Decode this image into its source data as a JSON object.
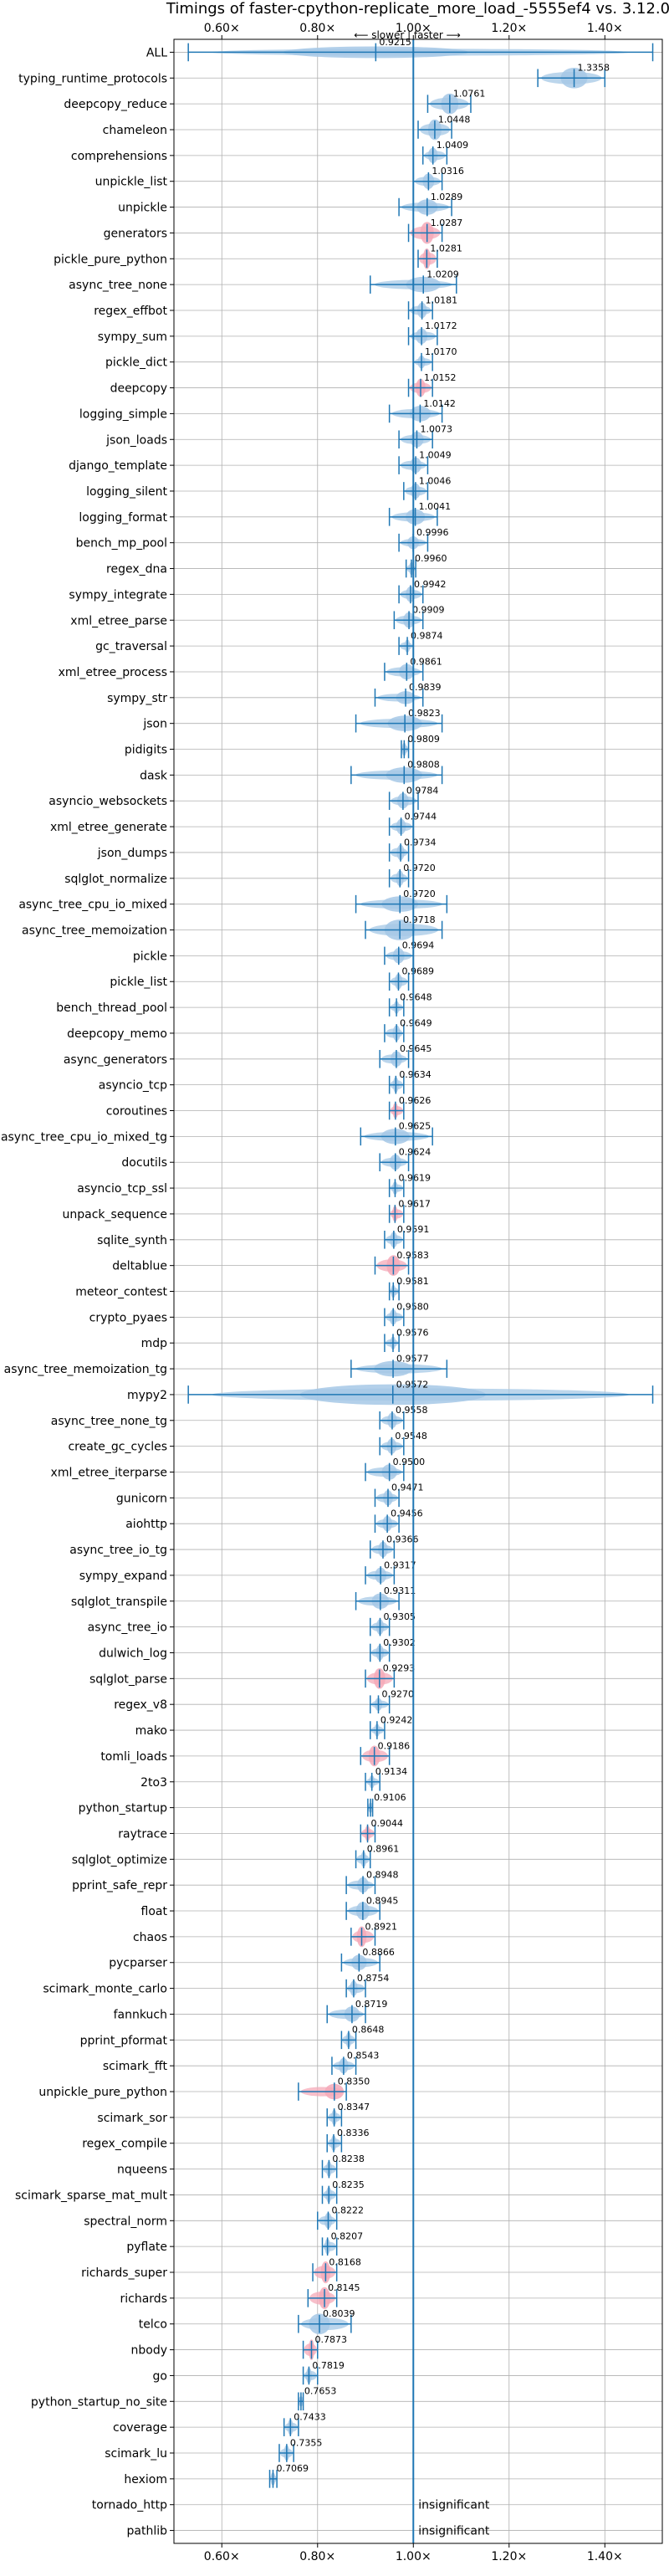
{
  "chart_data": {
    "type": "violin",
    "title": "Timings of faster-cpython-replicate_more_load_-5555ef4 vs. 3.12.0",
    "annotation": "⟵ slower | faster ⟶",
    "x_ticks": [
      {
        "value": 0.6,
        "label": "0.60×"
      },
      {
        "value": 0.8,
        "label": "0.80×"
      },
      {
        "value": 1.0,
        "label": "1.00×"
      },
      {
        "value": 1.2,
        "label": "1.20×"
      },
      {
        "value": 1.4,
        "label": "1.40×"
      }
    ],
    "xlim": [
      0.5,
      1.52
    ],
    "reference_line": 1.0,
    "grid": true,
    "colors": {
      "normal": "#a6c8e6",
      "significant": "#f4a9b8",
      "line": "#1f77b4"
    },
    "benchmarks": [
      {
        "name": "ALL",
        "value": 0.9215,
        "label": "0.9215",
        "lo": 0.53,
        "hi": 1.5,
        "width": 0.45,
        "sig": false
      },
      {
        "name": "typing_runtime_protocols",
        "value": 1.3358,
        "label": "1.3358",
        "lo": 1.26,
        "hi": 1.4,
        "width": 0.8,
        "sig": false
      },
      {
        "name": "deepcopy_reduce",
        "value": 1.0761,
        "label": "1.0761",
        "lo": 1.03,
        "hi": 1.12,
        "width": 0.8,
        "sig": false
      },
      {
        "name": "chameleon",
        "value": 1.0448,
        "label": "1.0448",
        "lo": 1.01,
        "hi": 1.08,
        "width": 0.8,
        "sig": false
      },
      {
        "name": "comprehensions",
        "value": 1.0409,
        "label": "1.0409",
        "lo": 1.02,
        "hi": 1.07,
        "width": 0.6,
        "sig": false
      },
      {
        "name": "unpickle_list",
        "value": 1.0316,
        "label": "1.0316",
        "lo": 1.0,
        "hi": 1.06,
        "width": 0.6,
        "sig": false
      },
      {
        "name": "unpickle",
        "value": 1.0289,
        "label": "1.0289",
        "lo": 0.97,
        "hi": 1.08,
        "width": 0.6,
        "sig": false
      },
      {
        "name": "generators",
        "value": 1.0287,
        "label": "1.0287",
        "lo": 0.99,
        "hi": 1.06,
        "width": 0.85,
        "sig": true
      },
      {
        "name": "pickle_pure_python",
        "value": 1.0281,
        "label": "1.0281",
        "lo": 1.01,
        "hi": 1.05,
        "width": 0.8,
        "sig": true
      },
      {
        "name": "async_tree_none",
        "value": 1.0209,
        "label": "1.0209",
        "lo": 0.91,
        "hi": 1.09,
        "width": 0.6,
        "sig": false
      },
      {
        "name": "regex_effbot",
        "value": 1.0181,
        "label": "1.0181",
        "lo": 0.99,
        "hi": 1.04,
        "width": 0.6,
        "sig": false
      },
      {
        "name": "sympy_sum",
        "value": 1.0172,
        "label": "1.0172",
        "lo": 0.99,
        "hi": 1.05,
        "width": 0.6,
        "sig": false
      },
      {
        "name": "pickle_dict",
        "value": 1.017,
        "label": "1.0170",
        "lo": 1.0,
        "hi": 1.04,
        "width": 0.5,
        "sig": false
      },
      {
        "name": "deepcopy",
        "value": 1.0152,
        "label": "1.0152",
        "lo": 0.99,
        "hi": 1.04,
        "width": 0.7,
        "sig": true
      },
      {
        "name": "logging_simple",
        "value": 1.0142,
        "label": "1.0142",
        "lo": 0.95,
        "hi": 1.06,
        "width": 0.6,
        "sig": false
      },
      {
        "name": "json_loads",
        "value": 1.0073,
        "label": "1.0073",
        "lo": 0.97,
        "hi": 1.04,
        "width": 0.6,
        "sig": false
      },
      {
        "name": "django_template",
        "value": 1.0049,
        "label": "1.0049",
        "lo": 0.97,
        "hi": 1.03,
        "width": 0.6,
        "sig": false
      },
      {
        "name": "logging_silent",
        "value": 1.0046,
        "label": "1.0046",
        "lo": 0.98,
        "hi": 1.03,
        "width": 0.6,
        "sig": false
      },
      {
        "name": "logging_format",
        "value": 1.0041,
        "label": "1.0041",
        "lo": 0.95,
        "hi": 1.05,
        "width": 0.6,
        "sig": false
      },
      {
        "name": "bench_mp_pool",
        "value": 0.9996,
        "label": "0.9996",
        "lo": 0.97,
        "hi": 1.03,
        "width": 0.5,
        "sig": false
      },
      {
        "name": "regex_dna",
        "value": 0.996,
        "label": "0.9960",
        "lo": 0.985,
        "hi": 1.005,
        "width": 0.5,
        "sig": false
      },
      {
        "name": "sympy_integrate",
        "value": 0.9942,
        "label": "0.9942",
        "lo": 0.97,
        "hi": 1.02,
        "width": 0.6,
        "sig": false
      },
      {
        "name": "xml_etree_parse",
        "value": 0.9909,
        "label": "0.9909",
        "lo": 0.96,
        "hi": 1.02,
        "width": 0.6,
        "sig": false
      },
      {
        "name": "gc_traversal",
        "value": 0.9874,
        "label": "0.9874",
        "lo": 0.97,
        "hi": 1.0,
        "width": 0.5,
        "sig": false
      },
      {
        "name": "xml_etree_process",
        "value": 0.9861,
        "label": "0.9861",
        "lo": 0.94,
        "hi": 1.02,
        "width": 0.6,
        "sig": false
      },
      {
        "name": "sympy_str",
        "value": 0.9839,
        "label": "0.9839",
        "lo": 0.92,
        "hi": 1.02,
        "width": 0.5,
        "sig": false
      },
      {
        "name": "json",
        "value": 0.9823,
        "label": "0.9823",
        "lo": 0.88,
        "hi": 1.06,
        "width": 0.6,
        "sig": false
      },
      {
        "name": "pidigits",
        "value": 0.9809,
        "label": "0.9809",
        "lo": 0.975,
        "hi": 0.99,
        "width": 0.5,
        "sig": false
      },
      {
        "name": "dask",
        "value": 0.9808,
        "label": "0.9808",
        "lo": 0.87,
        "hi": 1.06,
        "width": 0.6,
        "sig": false
      },
      {
        "name": "asyncio_websockets",
        "value": 0.9784,
        "label": "0.9784",
        "lo": 0.95,
        "hi": 1.01,
        "width": 0.6,
        "sig": false
      },
      {
        "name": "xml_etree_generate",
        "value": 0.9744,
        "label": "0.9744",
        "lo": 0.95,
        "hi": 1.0,
        "width": 0.6,
        "sig": false
      },
      {
        "name": "json_dumps",
        "value": 0.9734,
        "label": "0.9734",
        "lo": 0.95,
        "hi": 0.99,
        "width": 0.6,
        "sig": false
      },
      {
        "name": "sqlglot_normalize",
        "value": 0.972,
        "label": "0.9720",
        "lo": 0.95,
        "hi": 0.99,
        "width": 0.6,
        "sig": false
      },
      {
        "name": "async_tree_cpu_io_mixed",
        "value": 0.972,
        "label": "0.9720",
        "lo": 0.88,
        "hi": 1.07,
        "width": 0.6,
        "sig": false
      },
      {
        "name": "async_tree_memoization",
        "value": 0.9718,
        "label": "0.9718",
        "lo": 0.9,
        "hi": 1.06,
        "width": 0.8,
        "sig": false
      },
      {
        "name": "pickle",
        "value": 0.9694,
        "label": "0.9694",
        "lo": 0.94,
        "hi": 1.0,
        "width": 0.6,
        "sig": false
      },
      {
        "name": "pickle_list",
        "value": 0.9689,
        "label": "0.9689",
        "lo": 0.95,
        "hi": 0.99,
        "width": 0.6,
        "sig": false
      },
      {
        "name": "bench_thread_pool",
        "value": 0.9648,
        "label": "0.9648",
        "lo": 0.95,
        "hi": 0.98,
        "width": 0.5,
        "sig": false
      },
      {
        "name": "deepcopy_memo",
        "value": 0.9649,
        "label": "0.9649",
        "lo": 0.94,
        "hi": 0.98,
        "width": 0.6,
        "sig": false
      },
      {
        "name": "async_generators",
        "value": 0.9645,
        "label": "0.9645",
        "lo": 0.93,
        "hi": 0.99,
        "width": 0.6,
        "sig": false
      },
      {
        "name": "asyncio_tcp",
        "value": 0.9634,
        "label": "0.9634",
        "lo": 0.95,
        "hi": 0.98,
        "width": 0.6,
        "sig": false
      },
      {
        "name": "coroutines",
        "value": 0.9626,
        "label": "0.9626",
        "lo": 0.95,
        "hi": 0.98,
        "width": 0.6,
        "sig": true
      },
      {
        "name": "async_tree_cpu_io_mixed_tg",
        "value": 0.9625,
        "label": "0.9625",
        "lo": 0.89,
        "hi": 1.04,
        "width": 0.6,
        "sig": false
      },
      {
        "name": "docutils",
        "value": 0.9624,
        "label": "0.9624",
        "lo": 0.93,
        "hi": 0.99,
        "width": 0.6,
        "sig": false
      },
      {
        "name": "asyncio_tcp_ssl",
        "value": 0.9619,
        "label": "0.9619",
        "lo": 0.95,
        "hi": 0.98,
        "width": 0.5,
        "sig": false
      },
      {
        "name": "unpack_sequence",
        "value": 0.9617,
        "label": "0.9617",
        "lo": 0.95,
        "hi": 0.98,
        "width": 0.6,
        "sig": true
      },
      {
        "name": "sqlite_synth",
        "value": 0.9591,
        "label": "0.9591",
        "lo": 0.94,
        "hi": 0.98,
        "width": 0.6,
        "sig": false
      },
      {
        "name": "deltablue",
        "value": 0.9583,
        "label": "0.9583",
        "lo": 0.92,
        "hi": 0.99,
        "width": 0.8,
        "sig": true
      },
      {
        "name": "meteor_contest",
        "value": 0.9581,
        "label": "0.9581",
        "lo": 0.95,
        "hi": 0.97,
        "width": 0.5,
        "sig": false
      },
      {
        "name": "crypto_pyaes",
        "value": 0.958,
        "label": "0.9580",
        "lo": 0.94,
        "hi": 0.98,
        "width": 0.6,
        "sig": false
      },
      {
        "name": "mdp",
        "value": 0.9576,
        "label": "0.9576",
        "lo": 0.94,
        "hi": 0.97,
        "width": 0.5,
        "sig": false
      },
      {
        "name": "async_tree_memoization_tg",
        "value": 0.9577,
        "label": "0.9577",
        "lo": 0.87,
        "hi": 1.07,
        "width": 0.6,
        "sig": false
      },
      {
        "name": "mypy2",
        "value": 0.9572,
        "label": "0.9572",
        "lo": 0.53,
        "hi": 1.5,
        "width": 0.8,
        "sig": false
      },
      {
        "name": "async_tree_none_tg",
        "value": 0.9558,
        "label": "0.9558",
        "lo": 0.93,
        "hi": 0.98,
        "width": 0.6,
        "sig": false
      },
      {
        "name": "create_gc_cycles",
        "value": 0.9548,
        "label": "0.9548",
        "lo": 0.93,
        "hi": 0.98,
        "width": 0.6,
        "sig": false
      },
      {
        "name": "xml_etree_iterparse",
        "value": 0.95,
        "label": "0.9500",
        "lo": 0.9,
        "hi": 0.98,
        "width": 0.6,
        "sig": false
      },
      {
        "name": "gunicorn",
        "value": 0.9471,
        "label": "0.9471",
        "lo": 0.92,
        "hi": 0.97,
        "width": 0.6,
        "sig": false
      },
      {
        "name": "aiohttp",
        "value": 0.9456,
        "label": "0.9456",
        "lo": 0.92,
        "hi": 0.97,
        "width": 0.6,
        "sig": false
      },
      {
        "name": "async_tree_io_tg",
        "value": 0.9366,
        "label": "0.9366",
        "lo": 0.91,
        "hi": 0.96,
        "width": 0.6,
        "sig": false
      },
      {
        "name": "sympy_expand",
        "value": 0.9317,
        "label": "0.9317",
        "lo": 0.9,
        "hi": 0.96,
        "width": 0.6,
        "sig": false
      },
      {
        "name": "sqlglot_transpile",
        "value": 0.9311,
        "label": "0.9311",
        "lo": 0.88,
        "hi": 0.97,
        "width": 0.6,
        "sig": false
      },
      {
        "name": "async_tree_io",
        "value": 0.9305,
        "label": "0.9305",
        "lo": 0.91,
        "hi": 0.95,
        "width": 0.6,
        "sig": false
      },
      {
        "name": "dulwich_log",
        "value": 0.9302,
        "label": "0.9302",
        "lo": 0.91,
        "hi": 0.95,
        "width": 0.6,
        "sig": false
      },
      {
        "name": "sqlglot_parse",
        "value": 0.9293,
        "label": "0.9293",
        "lo": 0.9,
        "hi": 0.96,
        "width": 0.8,
        "sig": true
      },
      {
        "name": "regex_v8",
        "value": 0.927,
        "label": "0.9270",
        "lo": 0.91,
        "hi": 0.95,
        "width": 0.5,
        "sig": false
      },
      {
        "name": "mako",
        "value": 0.9242,
        "label": "0.9242",
        "lo": 0.91,
        "hi": 0.94,
        "width": 0.5,
        "sig": false
      },
      {
        "name": "tomli_loads",
        "value": 0.9186,
        "label": "0.9186",
        "lo": 0.89,
        "hi": 0.95,
        "width": 0.8,
        "sig": true
      },
      {
        "name": "2to3",
        "value": 0.9134,
        "label": "0.9134",
        "lo": 0.9,
        "hi": 0.93,
        "width": 0.5,
        "sig": false
      },
      {
        "name": "python_startup",
        "value": 0.9106,
        "label": "0.9106",
        "lo": 0.905,
        "hi": 0.915,
        "width": 0.4,
        "sig": false
      },
      {
        "name": "raytrace",
        "value": 0.9044,
        "label": "0.9044",
        "lo": 0.89,
        "hi": 0.92,
        "width": 0.6,
        "sig": true
      },
      {
        "name": "sqlglot_optimize",
        "value": 0.8961,
        "label": "0.8961",
        "lo": 0.88,
        "hi": 0.91,
        "width": 0.6,
        "sig": false
      },
      {
        "name": "pprint_safe_repr",
        "value": 0.8948,
        "label": "0.8948",
        "lo": 0.86,
        "hi": 0.92,
        "width": 0.6,
        "sig": false
      },
      {
        "name": "float",
        "value": 0.8945,
        "label": "0.8945",
        "lo": 0.86,
        "hi": 0.93,
        "width": 0.7,
        "sig": false
      },
      {
        "name": "chaos",
        "value": 0.8921,
        "label": "0.8921",
        "lo": 0.87,
        "hi": 0.92,
        "width": 0.8,
        "sig": true
      },
      {
        "name": "pycparser",
        "value": 0.8866,
        "label": "0.8866",
        "lo": 0.85,
        "hi": 0.93,
        "width": 0.6,
        "sig": false
      },
      {
        "name": "scimark_monte_carlo",
        "value": 0.8754,
        "label": "0.8754",
        "lo": 0.86,
        "hi": 0.9,
        "width": 0.6,
        "sig": false
      },
      {
        "name": "fannkuch",
        "value": 0.8719,
        "label": "0.8719",
        "lo": 0.82,
        "hi": 0.9,
        "width": 0.6,
        "sig": false
      },
      {
        "name": "pprint_pformat",
        "value": 0.8648,
        "label": "0.8648",
        "lo": 0.85,
        "hi": 0.88,
        "width": 0.6,
        "sig": false
      },
      {
        "name": "scimark_fft",
        "value": 0.8543,
        "label": "0.8543",
        "lo": 0.83,
        "hi": 0.88,
        "width": 0.6,
        "sig": false
      },
      {
        "name": "unpickle_pure_python",
        "value": 0.835,
        "label": "0.8350",
        "lo": 0.76,
        "hi": 0.86,
        "width": 0.6,
        "sig": true
      },
      {
        "name": "scimark_sor",
        "value": 0.8347,
        "label": "0.8347",
        "lo": 0.82,
        "hi": 0.85,
        "width": 0.6,
        "sig": false
      },
      {
        "name": "regex_compile",
        "value": 0.8336,
        "label": "0.8336",
        "lo": 0.82,
        "hi": 0.85,
        "width": 0.6,
        "sig": false
      },
      {
        "name": "nqueens",
        "value": 0.8238,
        "label": "0.8238",
        "lo": 0.81,
        "hi": 0.84,
        "width": 0.6,
        "sig": false
      },
      {
        "name": "scimark_sparse_mat_mult",
        "value": 0.8235,
        "label": "0.8235",
        "lo": 0.81,
        "hi": 0.84,
        "width": 0.6,
        "sig": false
      },
      {
        "name": "spectral_norm",
        "value": 0.8222,
        "label": "0.8222",
        "lo": 0.8,
        "hi": 0.84,
        "width": 0.6,
        "sig": false
      },
      {
        "name": "pyflate",
        "value": 0.8207,
        "label": "0.8207",
        "lo": 0.81,
        "hi": 0.84,
        "width": 0.6,
        "sig": false
      },
      {
        "name": "richards_super",
        "value": 0.8168,
        "label": "0.8168",
        "lo": 0.79,
        "hi": 0.84,
        "width": 0.85,
        "sig": true
      },
      {
        "name": "richards",
        "value": 0.8145,
        "label": "0.8145",
        "lo": 0.78,
        "hi": 0.84,
        "width": 0.85,
        "sig": true
      },
      {
        "name": "telco",
        "value": 0.8039,
        "label": "0.8039",
        "lo": 0.76,
        "hi": 0.87,
        "width": 0.8,
        "sig": false
      },
      {
        "name": "nbody",
        "value": 0.7873,
        "label": "0.7873",
        "lo": 0.77,
        "hi": 0.8,
        "width": 0.8,
        "sig": true
      },
      {
        "name": "go",
        "value": 0.7819,
        "label": "0.7819",
        "lo": 0.77,
        "hi": 0.8,
        "width": 0.6,
        "sig": false
      },
      {
        "name": "python_startup_no_site",
        "value": 0.7653,
        "label": "0.7653",
        "lo": 0.76,
        "hi": 0.77,
        "width": 0.4,
        "sig": false
      },
      {
        "name": "coverage",
        "value": 0.7433,
        "label": "0.7433",
        "lo": 0.73,
        "hi": 0.76,
        "width": 0.6,
        "sig": false
      },
      {
        "name": "scimark_lu",
        "value": 0.7355,
        "label": "0.7355",
        "lo": 0.72,
        "hi": 0.75,
        "width": 0.6,
        "sig": false
      },
      {
        "name": "hexiom",
        "value": 0.7069,
        "label": "0.7069",
        "lo": 0.7,
        "hi": 0.715,
        "width": 0.5,
        "sig": false
      },
      {
        "name": "tornado_http",
        "value": null,
        "label": "insignificant",
        "sig": false
      },
      {
        "name": "pathlib",
        "value": null,
        "label": "insignificant",
        "sig": false
      }
    ]
  }
}
